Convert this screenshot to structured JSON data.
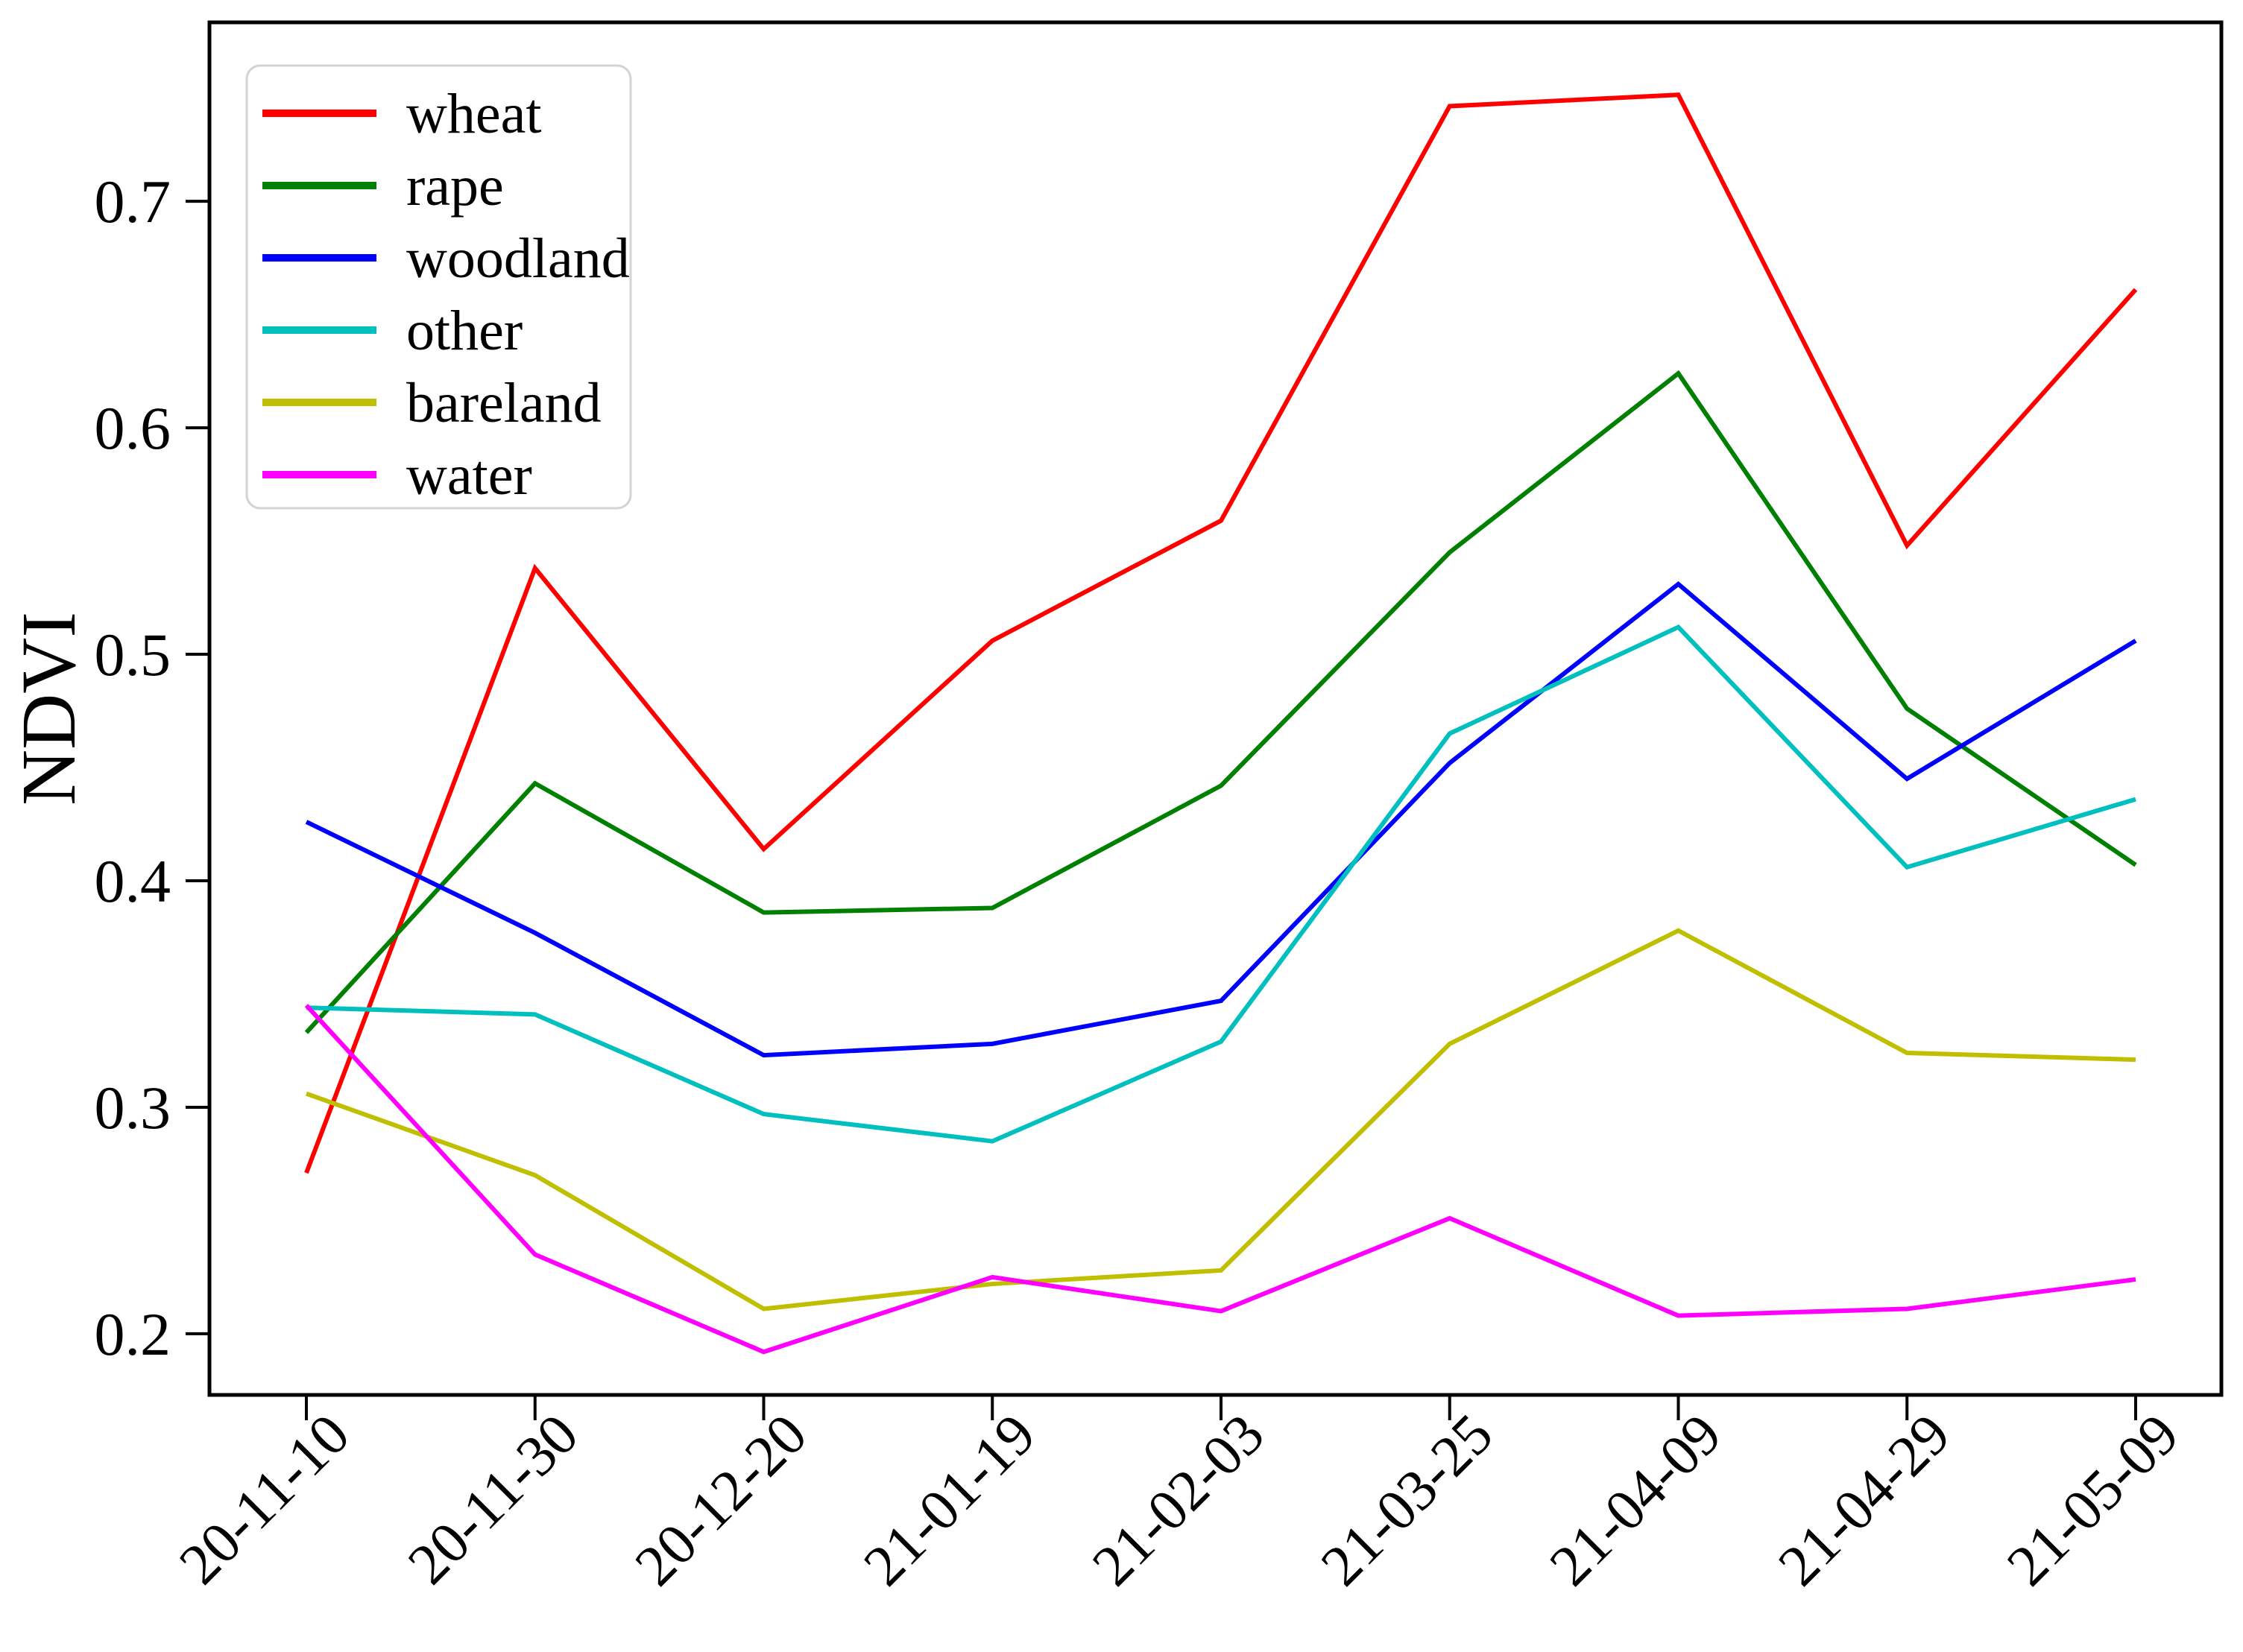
{
  "figure": {
    "background": "#ffffff",
    "axis_color": "#000000"
  },
  "chart_data": {
    "type": "line",
    "title": "",
    "xlabel": "",
    "ylabel": "NDVI",
    "categories": [
      "20-11-10",
      "20-11-30",
      "20-12-20",
      "21-01-19",
      "21-02-03",
      "21-03-25",
      "21-04-09",
      "21-04-29",
      "21-05-09"
    ],
    "series": [
      {
        "name": "wheat",
        "color": "#ff0000",
        "values": [
          0.271,
          0.538,
          0.414,
          0.506,
          0.559,
          0.742,
          0.747,
          0.548,
          0.661
        ]
      },
      {
        "name": "rape",
        "color": "#008000",
        "values": [
          0.333,
          0.443,
          0.386,
          0.388,
          0.442,
          0.545,
          0.624,
          0.476,
          0.407
        ]
      },
      {
        "name": "woodland",
        "color": "#0000ff",
        "values": [
          0.426,
          0.377,
          0.323,
          0.328,
          0.347,
          0.452,
          0.531,
          0.445,
          0.506
        ]
      },
      {
        "name": "other",
        "color": "#00bfbf",
        "values": [
          0.344,
          0.341,
          0.297,
          0.285,
          0.329,
          0.465,
          0.512,
          0.406,
          0.436
        ]
      },
      {
        "name": "bareland",
        "color": "#bfbf00",
        "values": [
          0.306,
          0.27,
          0.211,
          0.222,
          0.228,
          0.328,
          0.378,
          0.324,
          0.321
        ]
      },
      {
        "name": "water",
        "color": "#ff00ff",
        "values": [
          0.345,
          0.235,
          0.192,
          0.225,
          0.21,
          0.251,
          0.208,
          0.211,
          0.224
        ]
      }
    ],
    "yticks": [
      0.2,
      0.3,
      0.4,
      0.5,
      0.6,
      0.7
    ],
    "ylim": [
      0.173,
      0.779
    ],
    "grid": false,
    "legend_position": "upper-left",
    "x_tick_label_rotation": 45
  }
}
